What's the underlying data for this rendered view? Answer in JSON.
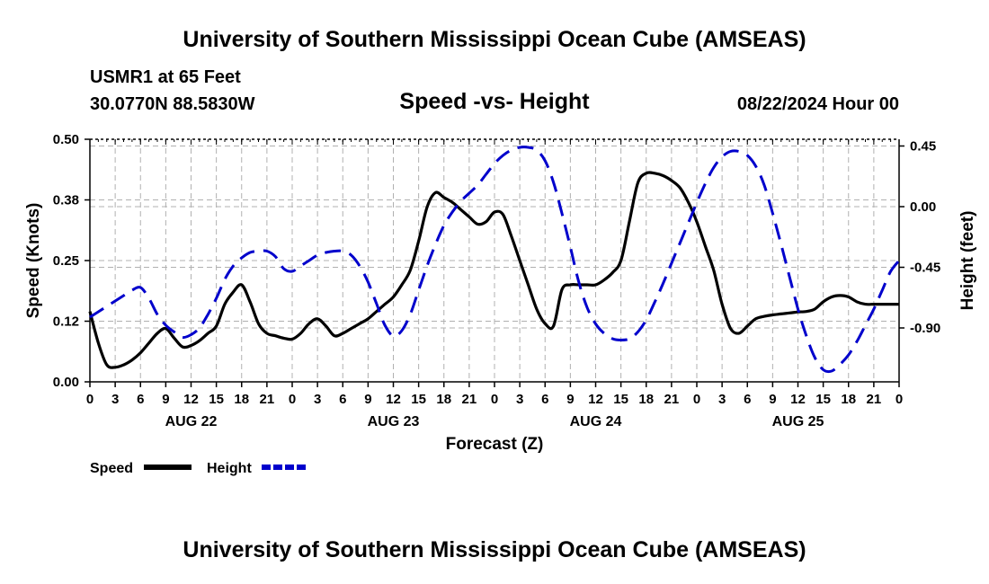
{
  "header": {
    "title": "University of Southern Mississippi Ocean Cube (AMSEAS)",
    "station": "USMR1 at 65 Feet",
    "coords": "30.0770N  88.5830W",
    "datetime": "08/22/2024 Hour 00",
    "footer_title": "University of Southern Mississippi Ocean Cube (AMSEAS)"
  },
  "chart_data": {
    "type": "line",
    "title": "Speed -vs- Height",
    "xlabel": "Forecast (Z)",
    "ylabel": "Speed (Knots)",
    "y2label": "Height (feet)",
    "xlim": [
      0,
      96
    ],
    "ylim": [
      0,
      0.5
    ],
    "y2lim": [
      -1.3,
      0.5
    ],
    "y_ticks": [
      0.0,
      0.125,
      0.25,
      0.375,
      0.5
    ],
    "y_tick_labels": [
      "0.00",
      "0.12",
      "0.25",
      "0.38",
      "0.50"
    ],
    "y2_ticks": [
      0.45,
      0.0,
      -0.45,
      -0.9
    ],
    "y2_tick_labels": [
      "0.45",
      "0.00",
      "-0.45",
      "-0.90"
    ],
    "x_tick_labels": [
      "0",
      "3",
      "6",
      "9",
      "12",
      "15",
      "18",
      "21",
      "0",
      "3",
      "6",
      "9",
      "12",
      "15",
      "18",
      "21",
      "0",
      "3",
      "6",
      "9",
      "12",
      "15",
      "18",
      "21",
      "0",
      "3",
      "6",
      "9",
      "12",
      "15",
      "18",
      "21",
      "0"
    ],
    "day_labels": [
      {
        "label": "AUG 22",
        "hour": 12
      },
      {
        "label": "AUG 23",
        "hour": 36
      },
      {
        "label": "AUG 24",
        "hour": 60
      },
      {
        "label": "AUG 25",
        "hour": 84
      }
    ],
    "grid": true,
    "series": [
      {
        "name": "Speed",
        "axis": "left",
        "color": "#000000",
        "style": "solid",
        "x": [
          0,
          1,
          2,
          3,
          4,
          5,
          6,
          7,
          8,
          9,
          10,
          11,
          12,
          13,
          14,
          15,
          16,
          17,
          18,
          19,
          20,
          21,
          22,
          23,
          24,
          25,
          26,
          27,
          28,
          29,
          30,
          31,
          32,
          33,
          34,
          35,
          36,
          37,
          38,
          39,
          40,
          41,
          42,
          43,
          44,
          45,
          46,
          47,
          48,
          49,
          50,
          51,
          52,
          53,
          54,
          55,
          56,
          57,
          58,
          59,
          60,
          61,
          62,
          63,
          64,
          65,
          66,
          67,
          68,
          69,
          70,
          71,
          72,
          73,
          74,
          75,
          76,
          77,
          78,
          79,
          80,
          81,
          82,
          83,
          84,
          85,
          86,
          87,
          88,
          89,
          90,
          91,
          92,
          93,
          94,
          95,
          96
        ],
        "values": [
          0.145,
          0.08,
          0.035,
          0.03,
          0.035,
          0.045,
          0.06,
          0.08,
          0.1,
          0.11,
          0.09,
          0.072,
          0.075,
          0.085,
          0.1,
          0.115,
          0.16,
          0.185,
          0.2,
          0.165,
          0.12,
          0.1,
          0.095,
          0.09,
          0.088,
          0.1,
          0.12,
          0.13,
          0.115,
          0.095,
          0.1,
          0.11,
          0.12,
          0.13,
          0.145,
          0.16,
          0.175,
          0.2,
          0.23,
          0.29,
          0.36,
          0.39,
          0.38,
          0.37,
          0.355,
          0.34,
          0.325,
          0.33,
          0.35,
          0.345,
          0.3,
          0.25,
          0.2,
          0.15,
          0.12,
          0.115,
          0.19,
          0.2,
          0.2,
          0.2,
          0.2,
          0.21,
          0.225,
          0.25,
          0.33,
          0.41,
          0.43,
          0.43,
          0.425,
          0.415,
          0.4,
          0.37,
          0.33,
          0.28,
          0.23,
          0.16,
          0.11,
          0.1,
          0.115,
          0.13,
          0.135,
          0.138,
          0.14,
          0.142,
          0.144,
          0.145,
          0.15,
          0.165,
          0.175,
          0.178,
          0.175,
          0.165,
          0.16,
          0.16,
          0.16,
          0.16,
          0.16
        ]
      },
      {
        "name": "Height",
        "axis": "right",
        "color": "#0000cc",
        "style": "dashed",
        "x": [
          0,
          1,
          2,
          3,
          4,
          5,
          6,
          7,
          8,
          9,
          10,
          11,
          12,
          13,
          14,
          15,
          16,
          17,
          18,
          19,
          20,
          21,
          22,
          23,
          24,
          25,
          26,
          27,
          28,
          29,
          30,
          31,
          32,
          33,
          34,
          35,
          36,
          37,
          38,
          39,
          40,
          41,
          42,
          43,
          44,
          45,
          46,
          47,
          48,
          49,
          50,
          51,
          52,
          53,
          54,
          55,
          56,
          57,
          58,
          59,
          60,
          61,
          62,
          63,
          64,
          65,
          66,
          67,
          68,
          69,
          70,
          71,
          72,
          73,
          74,
          75,
          76,
          77,
          78,
          79,
          80,
          81,
          82,
          83,
          84,
          85,
          86,
          87,
          88,
          89,
          90,
          91,
          92,
          93,
          94,
          95,
          96
        ],
        "values": [
          -0.82,
          -0.78,
          -0.74,
          -0.7,
          -0.66,
          -0.62,
          -0.6,
          -0.68,
          -0.8,
          -0.88,
          -0.93,
          -0.97,
          -0.95,
          -0.9,
          -0.8,
          -0.68,
          -0.54,
          -0.44,
          -0.38,
          -0.34,
          -0.33,
          -0.33,
          -0.37,
          -0.46,
          -0.48,
          -0.44,
          -0.4,
          -0.36,
          -0.34,
          -0.33,
          -0.33,
          -0.36,
          -0.44,
          -0.56,
          -0.72,
          -0.88,
          -0.96,
          -0.92,
          -0.8,
          -0.62,
          -0.44,
          -0.28,
          -0.14,
          -0.04,
          0.04,
          0.1,
          0.16,
          0.24,
          0.32,
          0.38,
          0.42,
          0.44,
          0.44,
          0.42,
          0.34,
          0.18,
          -0.05,
          -0.3,
          -0.56,
          -0.75,
          -0.87,
          -0.94,
          -0.98,
          -0.99,
          -0.98,
          -0.93,
          -0.84,
          -0.71,
          -0.57,
          -0.42,
          -0.27,
          -0.12,
          0.03,
          0.17,
          0.29,
          0.37,
          0.41,
          0.41,
          0.38,
          0.3,
          0.16,
          -0.05,
          -0.28,
          -0.52,
          -0.76,
          -0.96,
          -1.12,
          -1.21,
          -1.22,
          -1.17,
          -1.1,
          -1.0,
          -0.88,
          -0.76,
          -0.62,
          -0.48,
          -0.4
        ]
      }
    ],
    "legend": [
      {
        "label": "Speed",
        "color": "#000000",
        "style": "solid"
      },
      {
        "label": "Height",
        "color": "#0000cc",
        "style": "dashed"
      }
    ],
    "legend_position": "bottom-left"
  }
}
